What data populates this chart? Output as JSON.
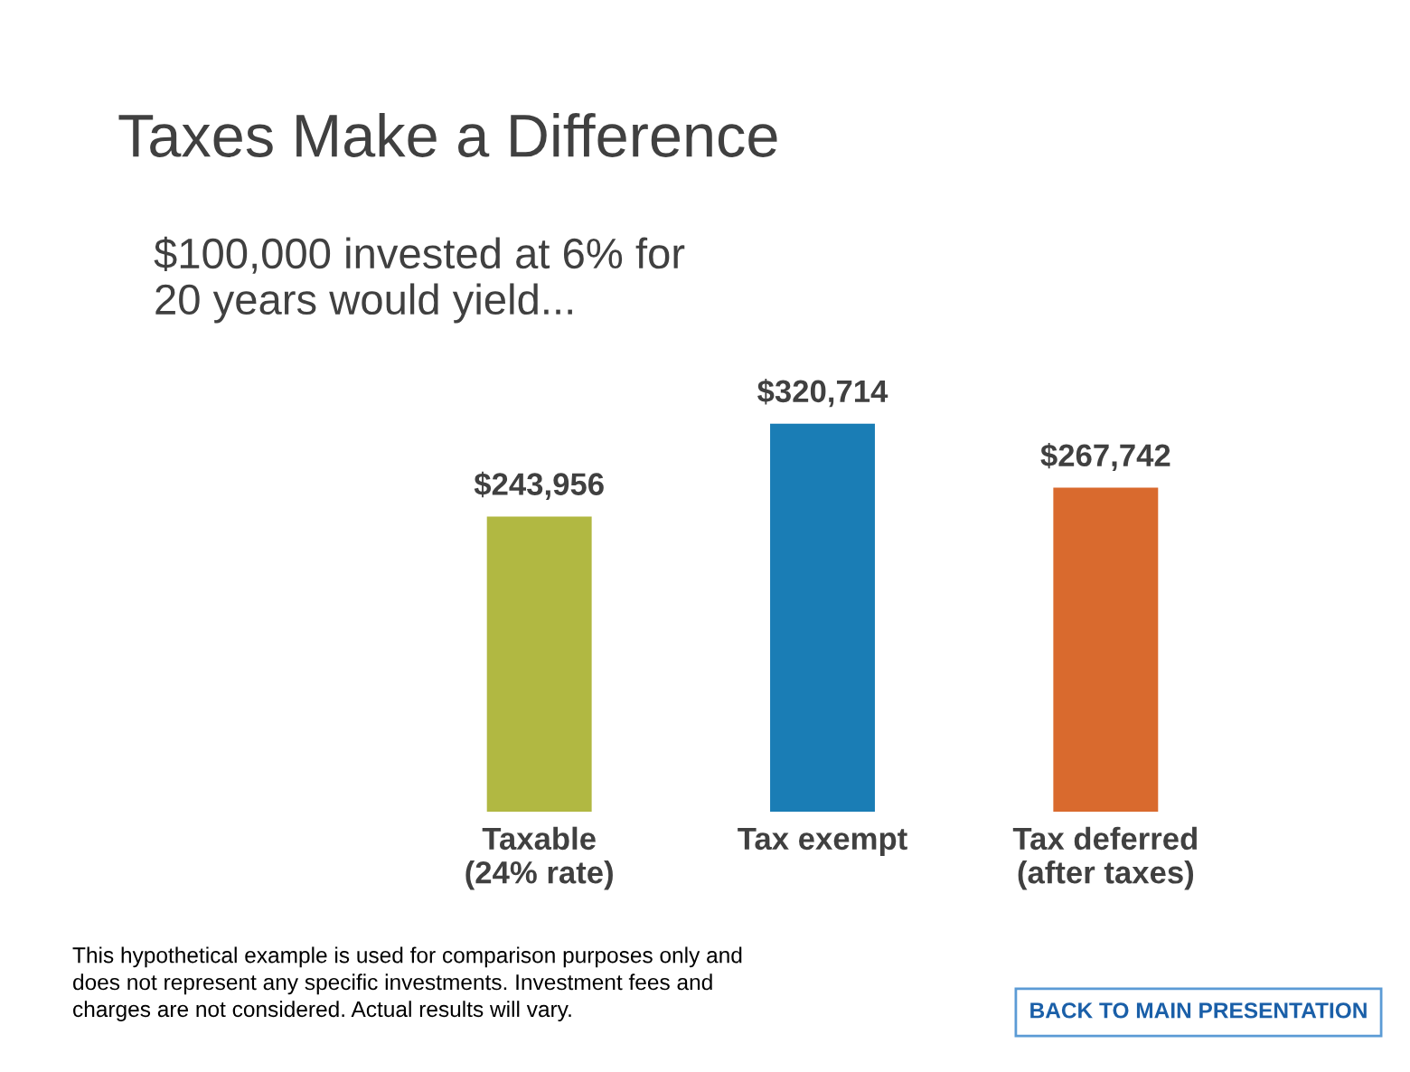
{
  "chart_data": {
    "type": "bar",
    "title": "Taxes Make a Difference",
    "subtitle": "$100,000 invested at 6% for\n20 years would yield...",
    "categories": [
      "Taxable\n(24% rate)",
      "Tax exempt",
      "Tax deferred\n(after taxes)"
    ],
    "values": [
      243956,
      320714,
      267742
    ],
    "colors": [
      "#b1b842",
      "#1a7db5",
      "#d96a2e"
    ],
    "value_labels": [
      "$243,956",
      "$320,714",
      "$267,742"
    ],
    "grid": false,
    "legend": false,
    "annotations": [
      "This hypothetical example is used for comparison purposes only and\ndoes not represent any specific investments. Investment fees and\ncharges are not considered. Actual results will vary.",
      "BACK TO MAIN PRESENTATION"
    ]
  }
}
